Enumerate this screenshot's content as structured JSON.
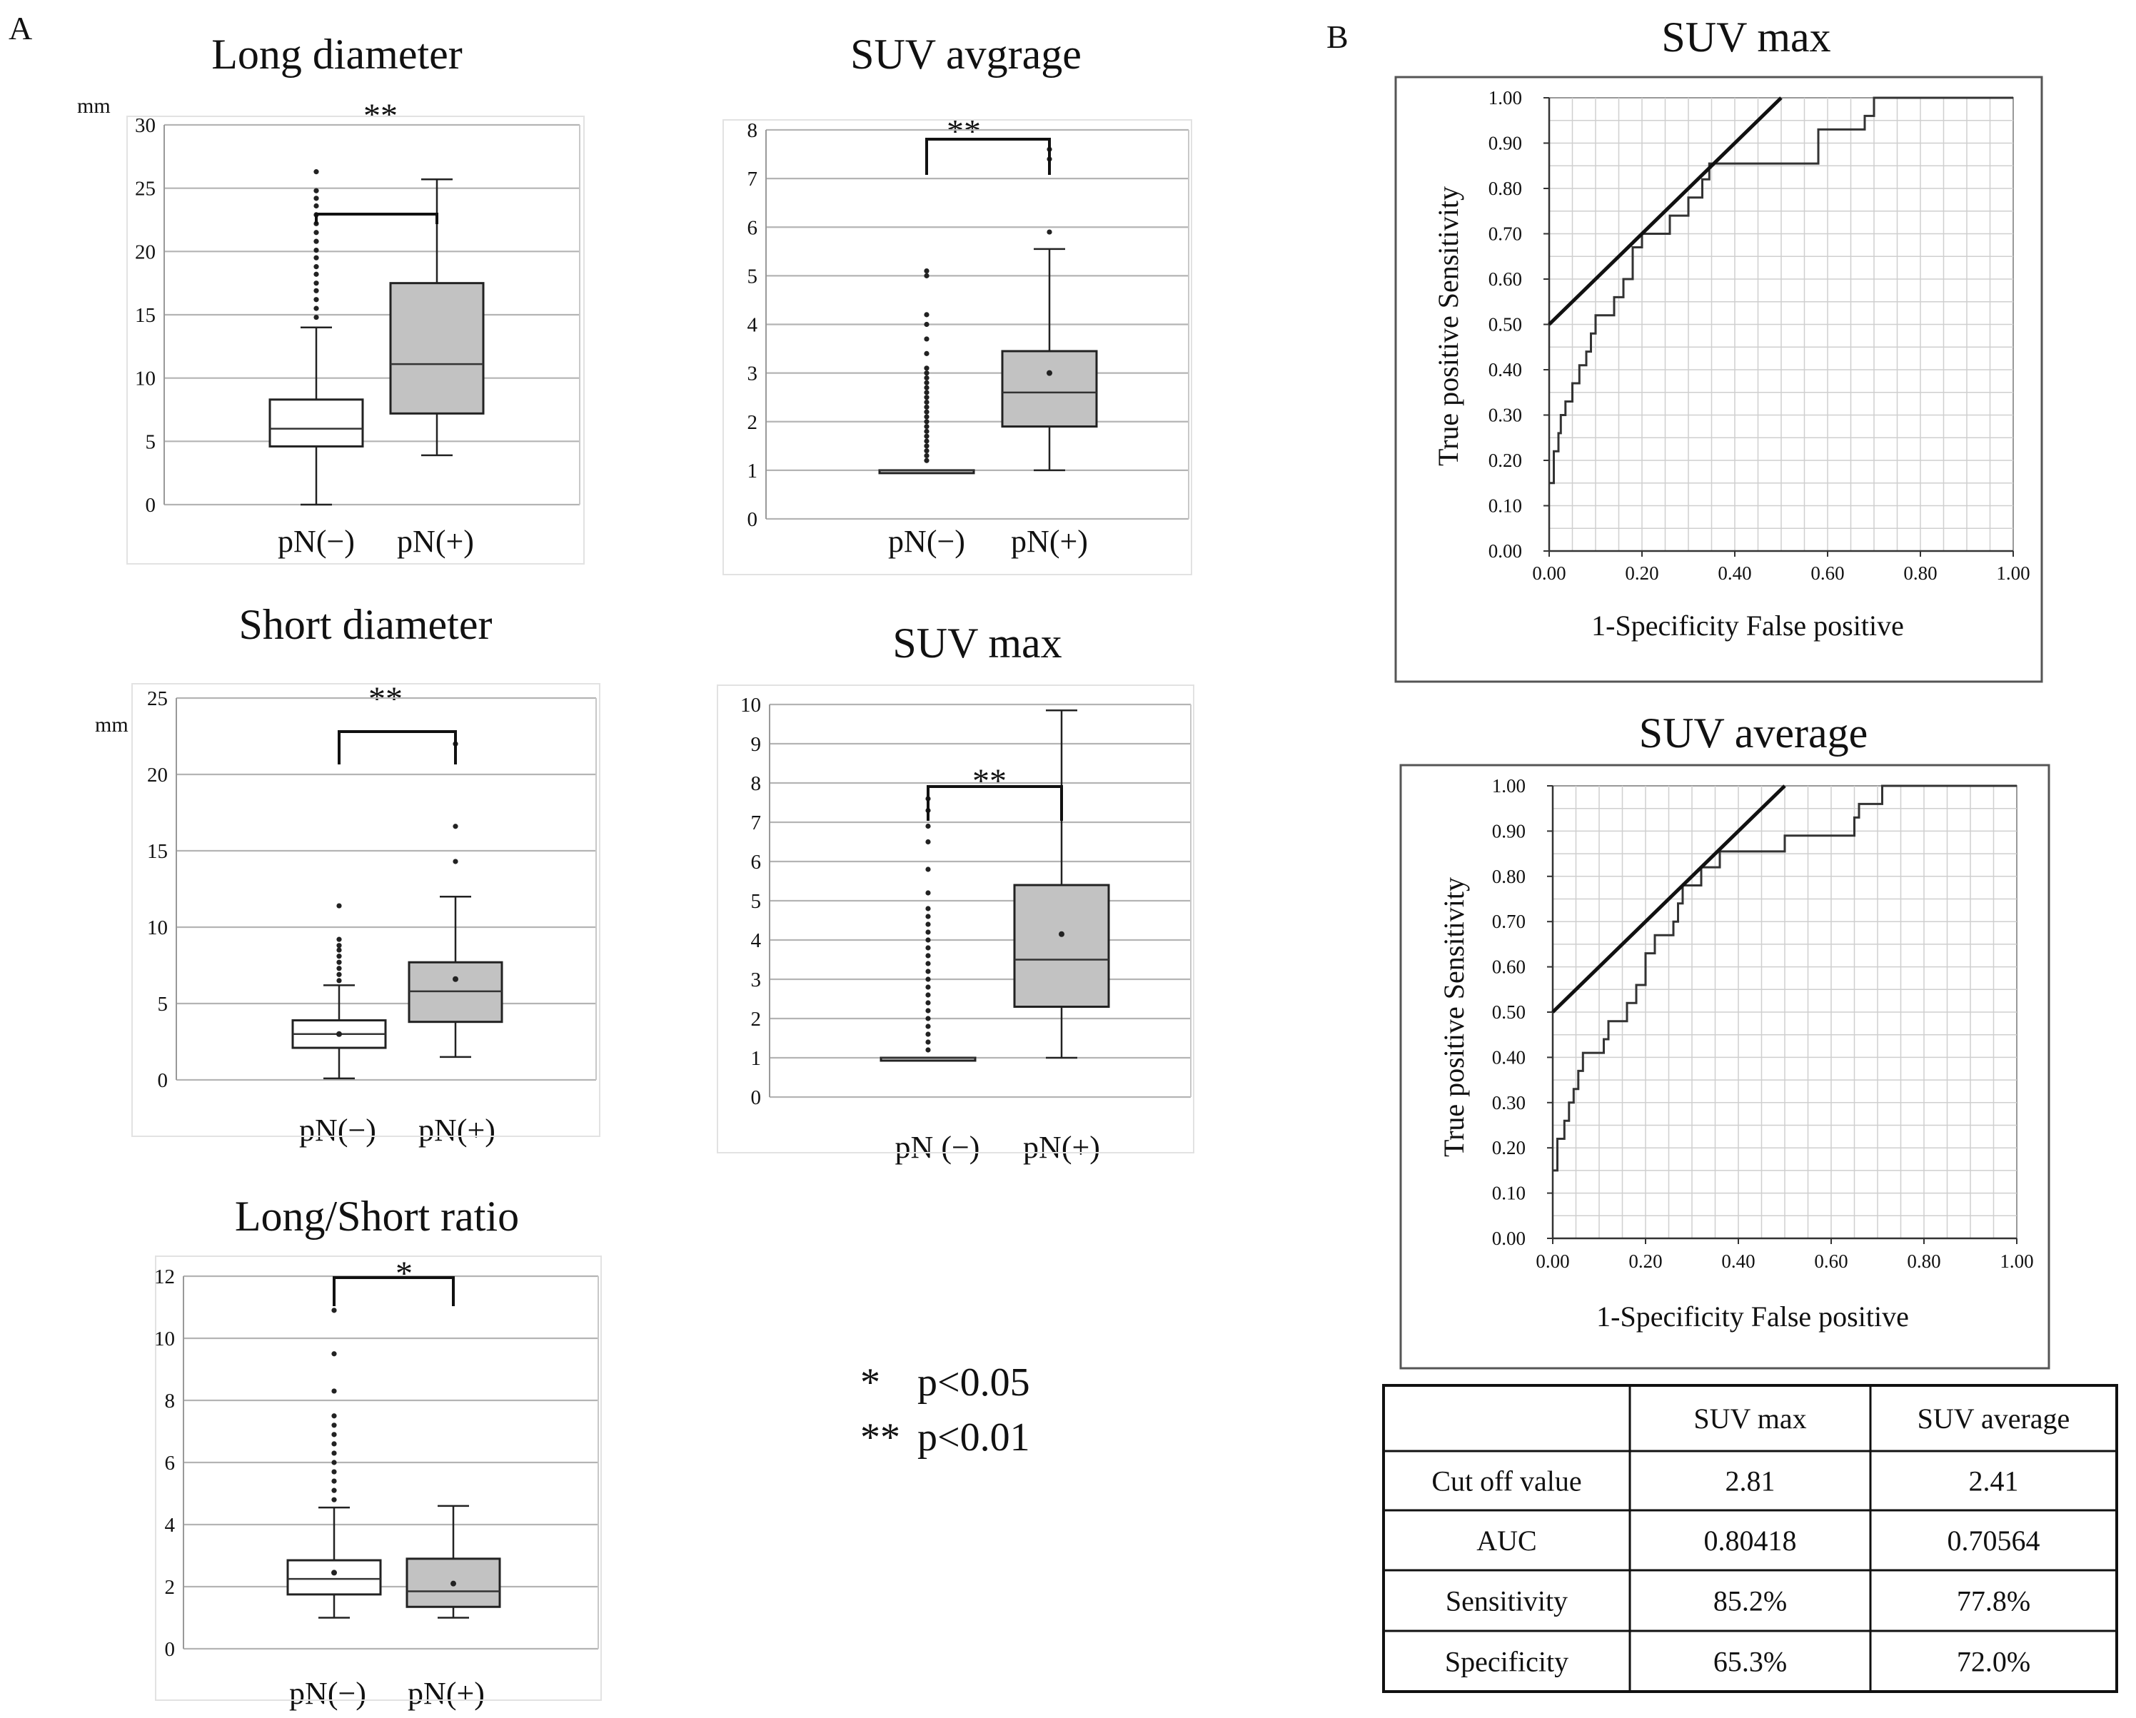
{
  "panel_labels": {
    "a": "A",
    "b": "B"
  },
  "legend": [
    {
      "symbol": "*",
      "text": "p<0.05"
    },
    {
      "symbol": "**",
      "text": "p<0.01"
    }
  ],
  "chart_data": [
    {
      "type": "box",
      "title": "Long diameter",
      "ylabel": "mm",
      "ylim": [
        0,
        30
      ],
      "yticks": [
        0,
        5,
        10,
        15,
        20,
        25,
        30
      ],
      "categories": [
        "pN(−)",
        "pN(+)"
      ],
      "significance": "**",
      "boxes": [
        {
          "name": "pN(−)",
          "color": "#ffffff",
          "min": 0,
          "q1": 4.6,
          "median": 6.0,
          "q3": 8.3,
          "max": 14.0,
          "mean": null,
          "outliers": [
            14.8,
            15.5,
            16.2,
            16.9,
            17.5,
            18.2,
            18.8,
            19.5,
            20.1,
            20.8,
            21.5,
            22.2,
            22.9,
            23.6,
            24.2,
            24.8,
            26.3
          ]
        },
        {
          "name": "pN(+)",
          "color": "#c2c2c2",
          "min": 3.9,
          "q1": 7.2,
          "median": 11.1,
          "q3": 17.5,
          "max": 25.7,
          "mean": null,
          "outliers": []
        }
      ]
    },
    {
      "type": "box",
      "title": "SUV avgrage",
      "ylim": [
        0,
        8
      ],
      "yticks": [
        0,
        1,
        2,
        3,
        4,
        5,
        6,
        7,
        8
      ],
      "categories": [
        "pN(−)",
        "pN(+)"
      ],
      "significance": "**",
      "boxes": [
        {
          "name": "pN(−)",
          "color": "#ffffff",
          "min": 1.0,
          "q1": 1.0,
          "median": 1.0,
          "q3": 1.0,
          "max": 1.0,
          "mean": null,
          "outliers": [
            1.2,
            1.3,
            1.4,
            1.5,
            1.6,
            1.7,
            1.8,
            1.9,
            2.0,
            2.1,
            2.2,
            2.3,
            2.4,
            2.5,
            2.6,
            2.7,
            2.8,
            2.9,
            3.0,
            3.1,
            3.4,
            3.7,
            4.0,
            4.2,
            5.0,
            5.1
          ]
        },
        {
          "name": "pN(+)",
          "color": "#c2c2c2",
          "min": 1.0,
          "q1": 1.9,
          "median": 2.6,
          "q3": 3.45,
          "max": 5.55,
          "mean": 3.0,
          "outliers": [
            5.9,
            7.4,
            7.6
          ]
        }
      ]
    },
    {
      "type": "box",
      "title": "Short diameter",
      "ylabel": "mm",
      "ylim": [
        0,
        25
      ],
      "yticks": [
        0,
        5,
        10,
        15,
        20,
        25
      ],
      "categories": [
        "pN(−)",
        "pN(+)"
      ],
      "significance": "**",
      "boxes": [
        {
          "name": "pN(−)",
          "color": "#ffffff",
          "min": 0.1,
          "q1": 2.1,
          "median": 3.0,
          "q3": 3.9,
          "max": 6.2,
          "mean": 3.0,
          "outliers": [
            6.5,
            6.9,
            7.3,
            7.7,
            8.1,
            8.5,
            8.8,
            9.2,
            11.4
          ]
        },
        {
          "name": "pN(+)",
          "color": "#c2c2c2",
          "min": 1.5,
          "q1": 3.8,
          "median": 5.8,
          "q3": 7.7,
          "max": 12.0,
          "mean": 6.6,
          "outliers": [
            14.3,
            16.6,
            22.0
          ]
        }
      ]
    },
    {
      "type": "box",
      "title": "SUV max",
      "ylim": [
        0,
        10
      ],
      "yticks": [
        0,
        1,
        2,
        3,
        4,
        5,
        6,
        7,
        8,
        9,
        10
      ],
      "categories": [
        "pN (−)",
        "pN(+)"
      ],
      "significance": "**",
      "boxes": [
        {
          "name": "pN (−)",
          "color": "#ffffff",
          "min": 1.0,
          "q1": 1.0,
          "median": 1.0,
          "q3": 1.0,
          "max": 1.0,
          "mean": null,
          "outliers": [
            1.2,
            1.4,
            1.6,
            1.8,
            2.0,
            2.2,
            2.4,
            2.6,
            2.8,
            3.0,
            3.2,
            3.4,
            3.6,
            3.8,
            4.0,
            4.2,
            4.4,
            4.6,
            4.8,
            5.2,
            5.8,
            6.5,
            6.9,
            7.3,
            7.6
          ]
        },
        {
          "name": "pN(+)",
          "color": "#c2c2c2",
          "min": 1.0,
          "q1": 2.3,
          "median": 3.5,
          "q3": 5.4,
          "max": 9.85,
          "mean": 4.15,
          "outliers": []
        }
      ]
    },
    {
      "type": "box",
      "title": "Long/Short ratio",
      "ylim": [
        0,
        12
      ],
      "yticks": [
        0,
        2,
        4,
        6,
        8,
        10,
        12
      ],
      "categories": [
        "pN(−)",
        "pN(+)"
      ],
      "significance": "*",
      "boxes": [
        {
          "name": "pN(−)",
          "color": "#ffffff",
          "min": 1.0,
          "q1": 1.75,
          "median": 2.25,
          "q3": 2.85,
          "max": 4.55,
          "mean": 2.45,
          "outliers": [
            4.8,
            5.1,
            5.4,
            5.7,
            6.0,
            6.3,
            6.6,
            6.9,
            7.2,
            7.5,
            8.3,
            9.5,
            10.9
          ]
        },
        {
          "name": "pN(+)",
          "color": "#c2c2c2",
          "min": 1.0,
          "q1": 1.35,
          "median": 1.85,
          "q3": 2.9,
          "max": 4.6,
          "mean": 2.1,
          "outliers": []
        }
      ]
    },
    {
      "type": "line",
      "title": "SUV max",
      "xlabel": "1-Specificity False positive",
      "ylabel": "True positive Sensitivity",
      "xlim": [
        0,
        1
      ],
      "ylim": [
        0,
        1
      ],
      "xticks": [
        "0.00",
        "0.20",
        "0.40",
        "0.60",
        "0.80",
        "1.00"
      ],
      "yticks": [
        "0.00",
        "0.10",
        "0.20",
        "0.30",
        "0.40",
        "0.50",
        "0.60",
        "0.70",
        "0.80",
        "0.90",
        "1.00"
      ],
      "roc": [
        [
          0,
          0.15
        ],
        [
          0.01,
          0.15
        ],
        [
          0.01,
          0.22
        ],
        [
          0.02,
          0.22
        ],
        [
          0.02,
          0.26
        ],
        [
          0.025,
          0.26
        ],
        [
          0.025,
          0.3
        ],
        [
          0.035,
          0.3
        ],
        [
          0.035,
          0.33
        ],
        [
          0.05,
          0.33
        ],
        [
          0.05,
          0.37
        ],
        [
          0.065,
          0.37
        ],
        [
          0.065,
          0.41
        ],
        [
          0.08,
          0.41
        ],
        [
          0.08,
          0.44
        ],
        [
          0.09,
          0.44
        ],
        [
          0.09,
          0.48
        ],
        [
          0.1,
          0.48
        ],
        [
          0.1,
          0.52
        ],
        [
          0.14,
          0.52
        ],
        [
          0.14,
          0.56
        ],
        [
          0.16,
          0.56
        ],
        [
          0.16,
          0.6
        ],
        [
          0.18,
          0.6
        ],
        [
          0.18,
          0.67
        ],
        [
          0.2,
          0.67
        ],
        [
          0.2,
          0.7
        ],
        [
          0.26,
          0.7
        ],
        [
          0.26,
          0.74
        ],
        [
          0.3,
          0.74
        ],
        [
          0.3,
          0.78
        ],
        [
          0.33,
          0.78
        ],
        [
          0.33,
          0.82
        ],
        [
          0.345,
          0.82
        ],
        [
          0.345,
          0.855
        ],
        [
          0.58,
          0.855
        ],
        [
          0.58,
          0.93
        ],
        [
          0.68,
          0.93
        ],
        [
          0.68,
          0.96
        ],
        [
          0.7,
          0.96
        ],
        [
          0.7,
          1.0
        ],
        [
          1.0,
          1.0
        ]
      ],
      "tangent": [
        [
          0,
          0.5
        ],
        [
          0.5,
          1.0
        ]
      ]
    },
    {
      "type": "line",
      "title": "SUV average",
      "xlabel": "1-Specificity False positive",
      "ylabel": "True positive Sensitivity",
      "xlim": [
        0,
        1
      ],
      "ylim": [
        0,
        1
      ],
      "xticks": [
        "0.00",
        "0.20",
        "0.40",
        "0.60",
        "0.80",
        "1.00"
      ],
      "yticks": [
        "0.00",
        "0.10",
        "0.20",
        "0.30",
        "0.40",
        "0.50",
        "0.60",
        "0.70",
        "0.80",
        "0.90",
        "1.00"
      ],
      "roc": [
        [
          0,
          0.15
        ],
        [
          0.01,
          0.15
        ],
        [
          0.01,
          0.22
        ],
        [
          0.025,
          0.22
        ],
        [
          0.025,
          0.26
        ],
        [
          0.035,
          0.26
        ],
        [
          0.035,
          0.3
        ],
        [
          0.045,
          0.3
        ],
        [
          0.045,
          0.33
        ],
        [
          0.055,
          0.33
        ],
        [
          0.055,
          0.37
        ],
        [
          0.065,
          0.37
        ],
        [
          0.065,
          0.41
        ],
        [
          0.11,
          0.41
        ],
        [
          0.11,
          0.44
        ],
        [
          0.12,
          0.44
        ],
        [
          0.12,
          0.48
        ],
        [
          0.16,
          0.48
        ],
        [
          0.16,
          0.52
        ],
        [
          0.18,
          0.52
        ],
        [
          0.18,
          0.56
        ],
        [
          0.2,
          0.56
        ],
        [
          0.2,
          0.63
        ],
        [
          0.22,
          0.63
        ],
        [
          0.22,
          0.67
        ],
        [
          0.26,
          0.67
        ],
        [
          0.26,
          0.7
        ],
        [
          0.27,
          0.7
        ],
        [
          0.27,
          0.74
        ],
        [
          0.28,
          0.74
        ],
        [
          0.28,
          0.78
        ],
        [
          0.32,
          0.78
        ],
        [
          0.32,
          0.82
        ],
        [
          0.36,
          0.82
        ],
        [
          0.36,
          0.855
        ],
        [
          0.5,
          0.855
        ],
        [
          0.5,
          0.89
        ],
        [
          0.65,
          0.89
        ],
        [
          0.65,
          0.93
        ],
        [
          0.66,
          0.93
        ],
        [
          0.66,
          0.96
        ],
        [
          0.71,
          0.96
        ],
        [
          0.71,
          1.0
        ],
        [
          1.0,
          1.0
        ]
      ],
      "tangent": [
        [
          0,
          0.5
        ],
        [
          0.5,
          1.0
        ]
      ]
    },
    {
      "type": "table",
      "columns": [
        "",
        "SUV max",
        "SUV average"
      ],
      "rows": [
        [
          "Cut off value",
          "2.81",
          "2.41"
        ],
        [
          "AUC",
          "0.80418",
          "0.70564"
        ],
        [
          "Sensitivity",
          "85.2%",
          "77.8%"
        ],
        [
          "Specificity",
          "65.3%",
          "72.0%"
        ]
      ]
    }
  ]
}
